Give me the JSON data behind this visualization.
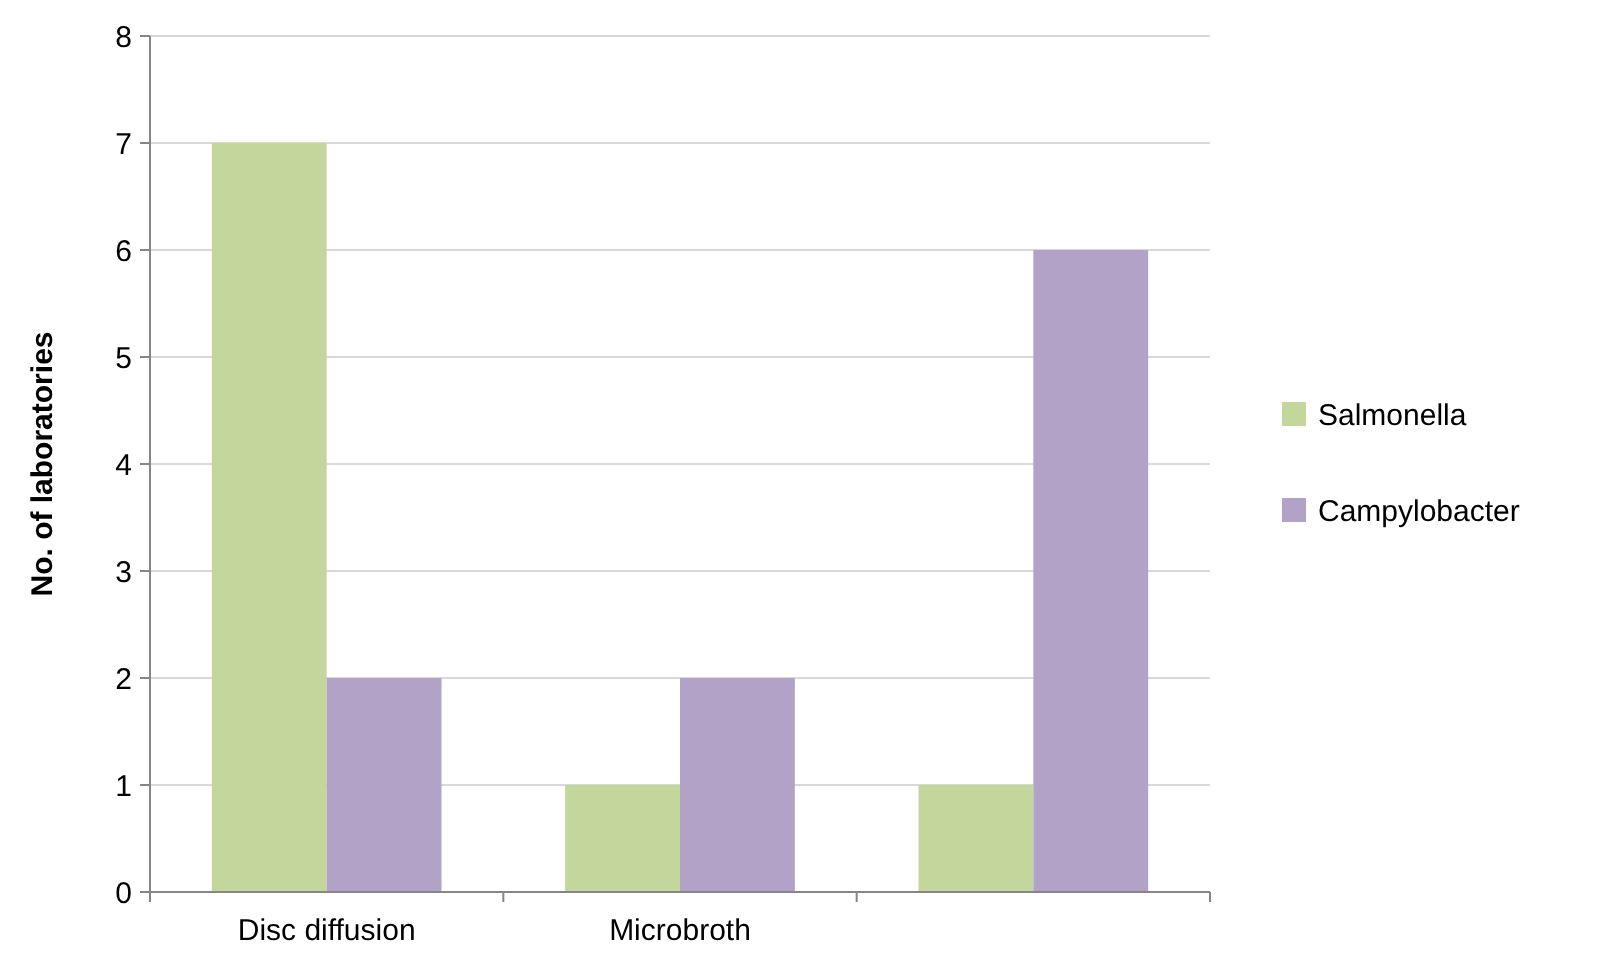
{
  "chart_data": {
    "type": "bar",
    "ylabel": "No. of laboratories",
    "categories": [
      "Disc diffusion",
      "Microbroth",
      null
    ],
    "series": [
      {
        "name": "Salmonella",
        "color": "#c3d69b",
        "values": [
          7,
          1,
          1
        ]
      },
      {
        "name": "Campylobacter",
        "color": "#b2a2c7",
        "values": [
          2,
          2,
          6
        ]
      }
    ],
    "ylim": [
      0,
      8
    ],
    "yticks": [
      0,
      1,
      2,
      3,
      4,
      5,
      6,
      7,
      8
    ],
    "grid": "y",
    "legend": "right"
  }
}
